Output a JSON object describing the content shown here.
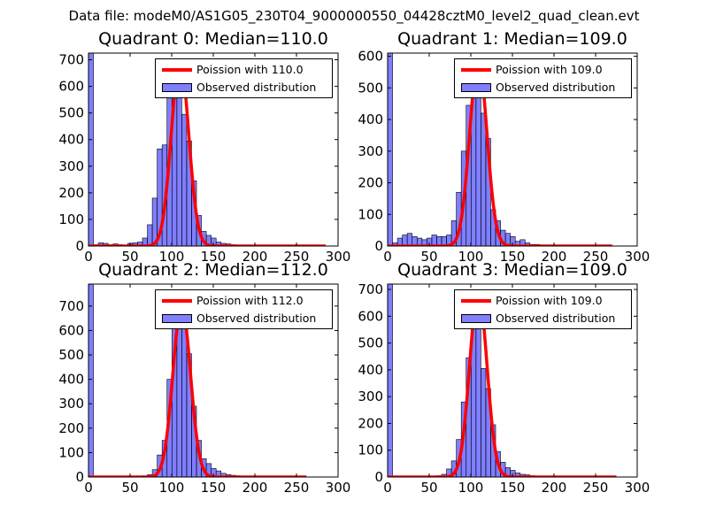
{
  "figure_title": "Data file: modeM0/AS1G05_230T04_9000000550_04428cztM0_level2_quad_clean.evt",
  "colors": {
    "poisson_line": "#ff0000",
    "histogram_fill": "#0000ff",
    "histogram_edge": "#000000"
  },
  "chart_data": [
    {
      "type": "bar",
      "title": "Quadrant 0: Median=110.0",
      "xlim": [
        0,
        300
      ],
      "ylim": [
        0,
        725
      ],
      "xticks": [
        0,
        50,
        100,
        150,
        200,
        250,
        300
      ],
      "yticks": [
        0,
        100,
        200,
        300,
        400,
        500,
        600,
        700
      ],
      "bin_width": 5.9,
      "histogram": {
        "name": "Observed distribution",
        "bins": [
          0,
          5.9,
          11.8,
          17.7,
          23.6,
          29.5,
          35.4,
          41.3,
          47.2,
          53.1,
          59,
          64.9,
          70.8,
          76.7,
          82.6,
          88.5,
          94.4,
          100.3,
          106.2,
          112.1,
          118,
          123.9,
          129.8,
          135.7,
          141.6,
          147.5,
          153.4,
          159.3,
          165.2,
          171.1,
          177,
          182.9,
          188.8,
          194.7,
          200.6,
          206.5,
          212.4,
          218.3,
          224.2,
          230.1,
          236,
          241.9,
          247.8,
          253.7,
          259.6,
          265.5,
          271.4,
          277.3,
          283.2
        ],
        "counts": [
          725,
          5,
          12,
          10,
          5,
          8,
          5,
          3,
          10,
          12,
          15,
          30,
          80,
          180,
          365,
          380,
          630,
          700,
          600,
          495,
          395,
          245,
          115,
          55,
          40,
          30,
          15,
          10,
          8,
          5,
          4,
          3,
          3,
          2,
          2,
          2,
          1,
          1,
          1,
          1,
          1,
          1,
          1,
          1,
          1,
          1,
          1,
          1,
          0
        ]
      },
      "poisson": {
        "label": "Poission with 110.0",
        "mean": 110.0,
        "peak": 697,
        "x_range": [
          0,
          285
        ]
      }
    },
    {
      "type": "bar",
      "title": "Quadrant 1: Median=109.0",
      "xlim": [
        0,
        300
      ],
      "ylim": [
        0,
        610
      ],
      "xticks": [
        0,
        50,
        100,
        150,
        200,
        250,
        300
      ],
      "yticks": [
        0,
        100,
        200,
        300,
        400,
        500,
        600
      ],
      "bin_width": 5.9,
      "histogram": {
        "name": "Observed distribution",
        "bins": [
          0,
          5.9,
          11.8,
          17.7,
          23.6,
          29.5,
          35.4,
          41.3,
          47.2,
          53.1,
          59,
          64.9,
          70.8,
          76.7,
          82.6,
          88.5,
          94.4,
          100.3,
          106.2,
          112.1,
          118,
          123.9,
          129.8,
          135.7,
          141.6,
          147.5,
          153.4,
          159.3,
          165.2,
          171.1,
          177,
          182.9,
          188.8,
          194.7,
          200.6,
          206.5,
          212.4,
          218.3,
          224.2,
          230.1,
          236,
          241.9,
          247.8,
          253.7,
          259.6,
          265.5
        ],
        "counts": [
          610,
          10,
          25,
          35,
          40,
          30,
          25,
          20,
          25,
          35,
          30,
          30,
          35,
          80,
          170,
          300,
          445,
          575,
          530,
          420,
          340,
          115,
          80,
          50,
          40,
          30,
          15,
          20,
          10,
          5,
          5,
          3,
          3,
          2,
          2,
          1,
          1,
          1,
          1,
          1,
          1,
          1,
          1,
          1,
          1,
          0
        ]
      },
      "poisson": {
        "label": "Poission with 109.0",
        "mean": 109.0,
        "peak": 587,
        "x_range": [
          0,
          270
        ]
      }
    },
    {
      "type": "bar",
      "title": "Quadrant 2: Median=112.0",
      "xlim": [
        0,
        300
      ],
      "ylim": [
        0,
        790
      ],
      "xticks": [
        0,
        50,
        100,
        150,
        200,
        250,
        300
      ],
      "yticks": [
        0,
        100,
        200,
        300,
        400,
        500,
        600,
        700
      ],
      "bin_width": 5.9,
      "histogram": {
        "name": "Observed distribution",
        "bins": [
          0,
          5.9,
          11.8,
          17.7,
          23.6,
          29.5,
          35.4,
          41.3,
          47.2,
          53.1,
          59,
          64.9,
          70.8,
          76.7,
          82.6,
          88.5,
          94.4,
          100.3,
          106.2,
          112.1,
          118,
          123.9,
          129.8,
          135.7,
          141.6,
          147.5,
          153.4,
          159.3,
          165.2,
          171.1,
          177,
          182.9,
          188.8,
          194.7,
          200.6,
          206.5,
          212.4,
          218.3,
          224.2,
          230.1,
          236,
          241.9,
          247.8,
          253.7,
          259.6
        ],
        "counts": [
          790,
          3,
          2,
          2,
          2,
          2,
          2,
          2,
          2,
          2,
          3,
          5,
          10,
          30,
          90,
          150,
          400,
          640,
          755,
          610,
          505,
          290,
          150,
          75,
          55,
          35,
          25,
          15,
          10,
          7,
          5,
          4,
          3,
          2,
          2,
          2,
          1,
          1,
          1,
          1,
          1,
          1,
          1,
          1,
          0
        ]
      },
      "poisson": {
        "label": "Poission with 112.0",
        "mean": 112.0,
        "peak": 700,
        "x_range": [
          0,
          262
        ]
      }
    },
    {
      "type": "bar",
      "title": "Quadrant 3: Median=109.0",
      "xlim": [
        0,
        300
      ],
      "ylim": [
        0,
        720
      ],
      "xticks": [
        0,
        50,
        100,
        150,
        200,
        250,
        300
      ],
      "yticks": [
        0,
        100,
        200,
        300,
        400,
        500,
        600,
        700
      ],
      "bin_width": 5.9,
      "histogram": {
        "name": "Observed distribution",
        "bins": [
          0,
          5.9,
          11.8,
          17.7,
          23.6,
          29.5,
          35.4,
          41.3,
          47.2,
          53.1,
          59,
          64.9,
          70.8,
          76.7,
          82.6,
          88.5,
          94.4,
          100.3,
          106.2,
          112.1,
          118,
          123.9,
          129.8,
          135.7,
          141.6,
          147.5,
          153.4,
          159.3,
          165.2,
          171.1,
          177,
          182.9,
          188.8,
          194.7,
          200.6,
          206.5,
          212.4,
          218.3,
          224.2,
          230.1,
          236,
          241.9,
          247.8,
          253.7,
          259.6,
          265.5,
          271.4
        ],
        "counts": [
          720,
          4,
          3,
          3,
          3,
          3,
          3,
          3,
          3,
          4,
          5,
          10,
          30,
          60,
          140,
          280,
          445,
          650,
          560,
          405,
          330,
          195,
          95,
          55,
          35,
          25,
          15,
          10,
          8,
          5,
          4,
          3,
          3,
          2,
          2,
          1,
          1,
          1,
          1,
          1,
          1,
          1,
          1,
          1,
          1,
          1,
          0
        ]
      },
      "poisson": {
        "label": "Poission with 109.0",
        "mean": 109.0,
        "peak": 690,
        "x_range": [
          0,
          275
        ]
      }
    }
  ]
}
